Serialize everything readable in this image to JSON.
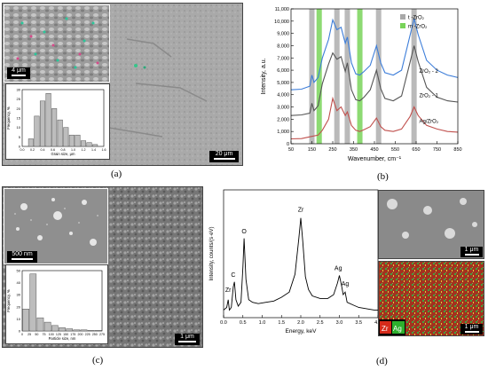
{
  "panels": {
    "a": {
      "label": "(a)",
      "inset_scale": "4 μm",
      "main_scale": "20 μm",
      "histogram": {
        "xlabel": "Grain size, μm",
        "ylabel": "Frequency, %",
        "xticks": [
          "0.0",
          "0.2",
          "0.4",
          "0.6",
          "0.8",
          "1.0",
          "1.2",
          "1.4",
          "1.6"
        ],
        "yticks": [
          "0",
          "5",
          "10",
          "15",
          "20",
          "25",
          "30"
        ]
      }
    },
    "b": {
      "label": "(b)",
      "legend_t": "t -ZrO₂",
      "legend_m": "m -ZrO₂",
      "curve_labels": [
        "ZrO₂ - 2",
        "ZrO₂ - 1",
        "Ag/ZrO₂"
      ]
    },
    "c": {
      "label": "(c)",
      "inset_scale": "500 nm",
      "main_scale": "1 μm",
      "histogram": {
        "xlabel": "Particle size, nm",
        "ylabel": "Frequency, %",
        "xticks": [
          "0",
          "25",
          "50",
          "75",
          "100",
          "125",
          "150",
          "175",
          "200",
          "225",
          "250",
          "275"
        ],
        "yticks": [
          "0",
          "10",
          "20",
          "30",
          "40",
          "50"
        ]
      }
    },
    "d": {
      "label": "(d)",
      "scale_top": "1 μm",
      "scale_bottom": "1 μm",
      "map_legend": [
        "Zr",
        "Ag"
      ],
      "peak_labels": [
        "Zr",
        "C",
        "O",
        "Zr",
        "Ag",
        "Ag"
      ]
    }
  },
  "chart_data": [
    {
      "type": "bar",
      "panel": "a-inset",
      "categories": [
        "0.1",
        "0.2",
        "0.3",
        "0.4",
        "0.5",
        "0.6",
        "0.7",
        "0.8",
        "0.9",
        "1.0",
        "1.1",
        "1.2",
        "1.3",
        "1.4"
      ],
      "values": [
        0,
        4,
        16,
        24,
        28,
        20,
        14,
        10,
        6,
        6,
        3,
        2,
        1,
        0
      ],
      "xlabel": "Grain size, μm",
      "ylabel": "Frequency, %",
      "ylim": [
        0,
        30
      ]
    },
    {
      "type": "line",
      "panel": "b",
      "xlabel": "Wavenumber, cm⁻¹",
      "ylabel": "Intensity, a.u.",
      "xlim": [
        50,
        850
      ],
      "ylim": [
        0,
        11000
      ],
      "xticks": [
        50,
        150,
        250,
        350,
        450,
        550,
        650,
        750,
        850
      ],
      "xticklabels": [
        "50",
        "150",
        "250",
        "350",
        "450",
        "550",
        "650",
        "750",
        "850"
      ],
      "yticks": [
        0,
        1000,
        2000,
        3000,
        4000,
        5000,
        6000,
        7000,
        8000,
        9000,
        10000,
        11000
      ],
      "yticklabels": [
        "0",
        "1,000",
        "2,000",
        "3,000",
        "4,000",
        "5,000",
        "6,000",
        "7,000",
        "8,000",
        "9,000",
        "10,000",
        "11,000"
      ],
      "bands_t": [
        150,
        270,
        320,
        470,
        640
      ],
      "bands_m": [
        185,
        380
      ],
      "band_colors": {
        "t": "#a9a9a9",
        "m": "#79d45a"
      },
      "series": [
        {
          "name": "ZrO₂ - 2",
          "color": "#3c7dd9",
          "x": [
            50,
            100,
            140,
            150,
            160,
            180,
            200,
            230,
            250,
            270,
            290,
            310,
            320,
            340,
            360,
            380,
            400,
            430,
            460,
            480,
            500,
            540,
            580,
            620,
            640,
            660,
            700,
            750,
            800,
            850
          ],
          "y": [
            4400,
            4450,
            4700,
            5600,
            5000,
            5400,
            7000,
            8500,
            10100,
            9300,
            9500,
            8200,
            8700,
            6600,
            5700,
            5600,
            5900,
            6400,
            8000,
            6600,
            5800,
            5600,
            6000,
            8800,
            10200,
            8900,
            6800,
            6000,
            5600,
            5400
          ]
        },
        {
          "name": "ZrO₂ - 1",
          "color": "#555555",
          "x": [
            50,
            100,
            140,
            150,
            160,
            180,
            200,
            230,
            250,
            270,
            290,
            310,
            320,
            340,
            360,
            380,
            400,
            430,
            460,
            480,
            500,
            540,
            580,
            620,
            640,
            660,
            700,
            750,
            800,
            850
          ],
          "y": [
            2300,
            2350,
            2500,
            3300,
            2700,
            3100,
            4900,
            6500,
            7400,
            6900,
            7100,
            5900,
            6600,
            4400,
            3600,
            3500,
            3800,
            4400,
            6000,
            4500,
            3700,
            3500,
            3900,
            6600,
            8000,
            6700,
            4600,
            3800,
            3500,
            3400
          ]
        },
        {
          "name": "Ag/ZrO₂",
          "color": "#c0504d",
          "x": [
            50,
            100,
            150,
            180,
            200,
            230,
            250,
            270,
            290,
            310,
            320,
            340,
            360,
            380,
            400,
            430,
            460,
            480,
            500,
            540,
            580,
            620,
            640,
            660,
            700,
            750,
            800,
            850
          ],
          "y": [
            400,
            420,
            600,
            700,
            1100,
            2000,
            3700,
            2700,
            3000,
            2300,
            2600,
            1500,
            1100,
            1000,
            1150,
            1400,
            2100,
            1400,
            1100,
            1000,
            1200,
            2200,
            3000,
            2300,
            1500,
            1200,
            1000,
            950
          ]
        }
      ]
    },
    {
      "type": "bar",
      "panel": "c-inset",
      "categories": [
        "12.5",
        "37.5",
        "62.5",
        "87.5",
        "112.5",
        "137.5",
        "162.5",
        "187.5",
        "212.5",
        "237.5",
        "262.5"
      ],
      "values": [
        20,
        52,
        12,
        8,
        5,
        3,
        2,
        1,
        1,
        0.5,
        0.5
      ],
      "xlabel": "Particle size, nm",
      "ylabel": "Frequency, %",
      "ylim": [
        0,
        55
      ]
    },
    {
      "type": "line",
      "panel": "d",
      "xlabel": "Energy, keV",
      "ylabel": "Intensity, counts/(s·eV)",
      "xlim": [
        0.0,
        4.0
      ],
      "xticks": [
        0.0,
        0.5,
        1.0,
        1.5,
        2.0,
        2.5,
        3.0,
        3.5,
        4.0
      ],
      "xticklabels": [
        "0.0",
        "0.5",
        "1.0",
        "1.5",
        "2.0",
        "2.5",
        "3.0",
        "3.5",
        "4.0"
      ],
      "ylim": [
        0,
        100
      ],
      "series": [
        {
          "name": "",
          "x": [
            0.0,
            0.08,
            0.12,
            0.15,
            0.2,
            0.25,
            0.28,
            0.32,
            0.38,
            0.45,
            0.5,
            0.53,
            0.58,
            0.65,
            0.75,
            0.9,
            1.1,
            1.3,
            1.5,
            1.7,
            1.85,
            1.95,
            2.0,
            2.05,
            2.12,
            2.2,
            2.3,
            2.5,
            2.7,
            2.85,
            2.95,
            3.0,
            3.05,
            3.1,
            3.15,
            3.2,
            3.35,
            3.5,
            3.7,
            3.9,
            4.0
          ],
          "y": [
            6,
            8,
            14,
            6,
            8,
            24,
            28,
            14,
            9,
            12,
            40,
            62,
            30,
            14,
            12,
            11,
            12,
            13,
            16,
            20,
            34,
            62,
            78,
            60,
            32,
            22,
            17,
            15,
            15,
            18,
            27,
            33,
            26,
            18,
            20,
            12,
            10,
            8,
            7,
            6,
            6
          ]
        }
      ]
    }
  ]
}
